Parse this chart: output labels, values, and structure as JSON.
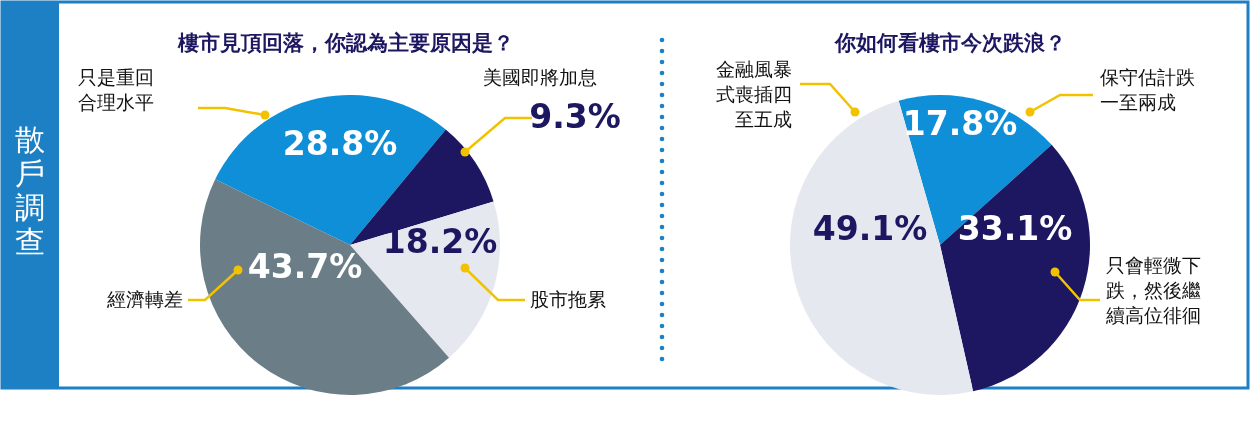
{
  "chart_data": [
    {
      "type": "pie",
      "title": "樓市見頂回落，你認為主要原因是？",
      "annotations": [
        "散戶調查"
      ],
      "categories": [
        "只是重回合理水平",
        "美國即將加息",
        "股市拖累",
        "經濟轉差"
      ],
      "values": [
        28.8,
        9.3,
        18.2,
        43.7
      ],
      "value_labels": [
        "28.8%",
        "9.3%",
        "18.2%",
        "43.7%"
      ],
      "colors": [
        "#0e8fd8",
        "#1c1760",
        "#e6e8f0",
        "#6b7d86"
      ]
    },
    {
      "type": "pie",
      "title": "你如何看樓市今次跌浪？",
      "categories": [
        "保守估計跌一至兩成",
        "只會輕微下跌，然後繼續高位徘徊",
        "金融風暴式喪插四至五成"
      ],
      "values": [
        17.8,
        33.1,
        49.1
      ],
      "value_labels": [
        "17.8%",
        "33.1%",
        "49.1%"
      ],
      "colors": [
        "#0e8fd8",
        "#1c1760",
        "#e6e8f0"
      ]
    }
  ]
}
